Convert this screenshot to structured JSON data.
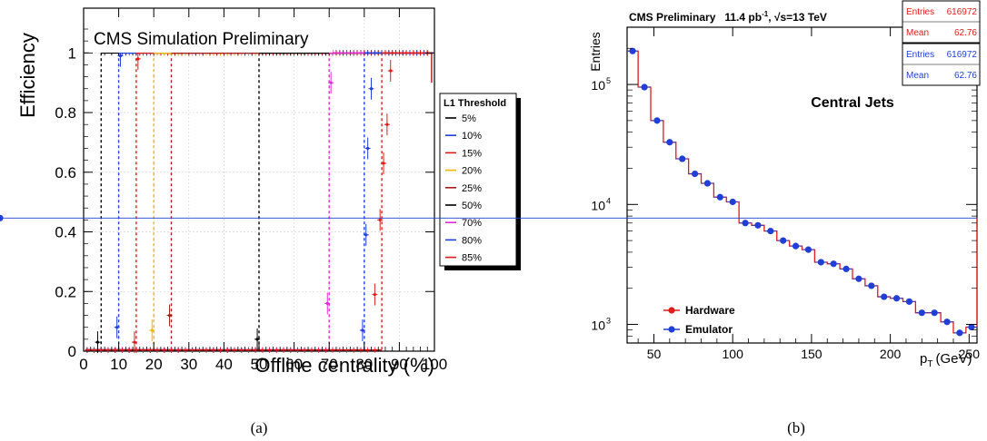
{
  "chart_data": [
    {
      "type": "scatter",
      "caption": "(a)",
      "title": "CMS Simulation Preliminary",
      "xlabel": "Offline centrality (%)",
      "ylabel": "Efficiency",
      "xlim": [
        0,
        100
      ],
      "ylim": [
        0,
        1.15
      ],
      "xticks": [
        "0",
        "10",
        "20",
        "30",
        "40",
        "50",
        "60",
        "70",
        "80",
        "90",
        "100"
      ],
      "yticks": [
        "0",
        "0.2",
        "0.4",
        "0.6",
        "0.8",
        "1"
      ],
      "legend_title": "L1 Threshold",
      "legend_position": "right",
      "series": [
        {
          "name": "5%",
          "color": "#000000",
          "threshold": 5,
          "turn_on": [
            [
              4,
              0.03
            ]
          ]
        },
        {
          "name": "10%",
          "color": "#1f3fd6",
          "threshold": 10,
          "turn_on": [
            [
              9.5,
              0.08
            ],
            [
              10.5,
              0.99
            ]
          ]
        },
        {
          "name": "15%",
          "color": "#e01b1b",
          "threshold": 15,
          "turn_on": [
            [
              14.5,
              0.03
            ],
            [
              15.5,
              0.98
            ]
          ]
        },
        {
          "name": "20%",
          "color": "#f2b600",
          "threshold": 20,
          "turn_on": [
            [
              19.5,
              0.07
            ]
          ]
        },
        {
          "name": "25%",
          "color": "#a51a1a",
          "threshold": 25,
          "turn_on": [
            [
              24.5,
              0.12
            ]
          ]
        },
        {
          "name": "50%",
          "color": "#000000",
          "threshold": 50,
          "turn_on": [
            [
              49.5,
              0.04
            ]
          ]
        },
        {
          "name": "70%",
          "color": "#e02ad2",
          "threshold": 70,
          "turn_on": [
            [
              69.5,
              0.16
            ],
            [
              70.5,
              0.9
            ]
          ]
        },
        {
          "name": "80%",
          "color": "#1f3fd6",
          "threshold": 80,
          "turn_on": [
            [
              79.5,
              0.07
            ],
            [
              80.5,
              0.39
            ],
            [
              81,
              0.68
            ],
            [
              82,
              0.88
            ]
          ]
        },
        {
          "name": "85%",
          "color": "#e01b1b",
          "threshold": 85,
          "turn_on": [
            [
              83,
              0.19
            ],
            [
              84.5,
              0.44
            ],
            [
              85.5,
              0.63
            ],
            [
              86.5,
              0.76
            ],
            [
              87.5,
              0.94
            ]
          ]
        }
      ]
    },
    {
      "type": "line",
      "caption": "(b)",
      "title": "CMS Preliminary",
      "lumi": "11.4 pb",
      "lumi_sup": "-1",
      "energy": "√s=13 TeV",
      "annotation": "Central Jets",
      "xlabel": "p",
      "xlabel_sub": "T",
      "xlabel_unit": "(GeV)",
      "ylabel": "Entries",
      "xlim": [
        33,
        255
      ],
      "ylim": [
        700,
        300000
      ],
      "log_y": true,
      "xticks": [
        "50",
        "100",
        "150",
        "200",
        "250"
      ],
      "yticks": [
        {
          "base": "10",
          "exp": "3"
        },
        {
          "base": "10",
          "exp": "4"
        },
        {
          "base": "10",
          "exp": "5"
        }
      ],
      "stat_boxes": [
        {
          "color": "#e01b1b",
          "rows": [
            [
              "Entries",
              "616972"
            ],
            [
              "Mean",
              "62.76"
            ]
          ]
        },
        {
          "color": "#1f3fd6",
          "rows": [
            [
              "Entries",
              "616972"
            ],
            [
              "Mean",
              "62.76"
            ]
          ]
        }
      ],
      "legend_position": "bottom-left",
      "bin_edges": [
        32,
        40,
        48,
        56,
        64,
        72,
        80,
        88,
        96,
        104,
        112,
        120,
        128,
        136,
        144,
        152,
        160,
        168,
        176,
        184,
        192,
        200,
        208,
        216,
        224,
        232,
        240,
        248,
        256
      ],
      "series": [
        {
          "name": "Hardware",
          "color": "#e01b1b",
          "values": [
            190000,
            95000,
            50000,
            33000,
            24000,
            18000,
            15000,
            11500,
            10500,
            7000,
            6700,
            6000,
            5000,
            4500,
            4200,
            3300,
            3200,
            2900,
            2400,
            2100,
            1700,
            1650,
            1550,
            1250,
            1250,
            1050,
            850,
            950,
            7700
          ]
        },
        {
          "name": "Emulator",
          "color": "#1f3fd6",
          "values": [
            190000,
            95000,
            50000,
            33000,
            24000,
            18000,
            15000,
            11500,
            10500,
            7000,
            6700,
            6000,
            5000,
            4500,
            4200,
            3300,
            3200,
            2900,
            2400,
            2100,
            1700,
            1650,
            1550,
            1250,
            1250,
            1050,
            850,
            950,
            7700
          ]
        }
      ]
    }
  ]
}
